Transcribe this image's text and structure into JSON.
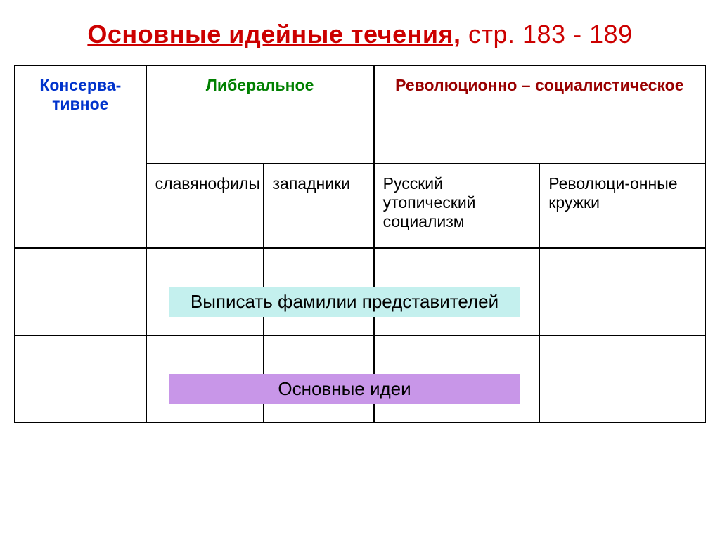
{
  "title": {
    "underlined_text": "Основные идейные течения,",
    "plain_text": " стр. 183 - 189",
    "underlined_color": "#cc0000",
    "plain_color": "#cc0000"
  },
  "headers": {
    "col1": "Консерва-тивное",
    "col2": "Либеральное",
    "col3": "Революционно – социалистическое",
    "col1_color": "#0033cc",
    "col2_color": "#008000",
    "col3_color": "#990000"
  },
  "subheaders": {
    "s1": "славянофилы",
    "s2": "западники",
    "s3": "Русский утопический социализм",
    "s4": "Революци-онные кружки"
  },
  "overlays": {
    "row1_text": "Выписать фамилии представителей",
    "row1_bg": "#c4f0ee",
    "row2_text": "Основные идеи",
    "row2_bg": "#c896e8"
  },
  "table": {
    "col_widths_pct": [
      19,
      17,
      16,
      24,
      24
    ],
    "border_color": "#000000",
    "border_width": 2
  }
}
